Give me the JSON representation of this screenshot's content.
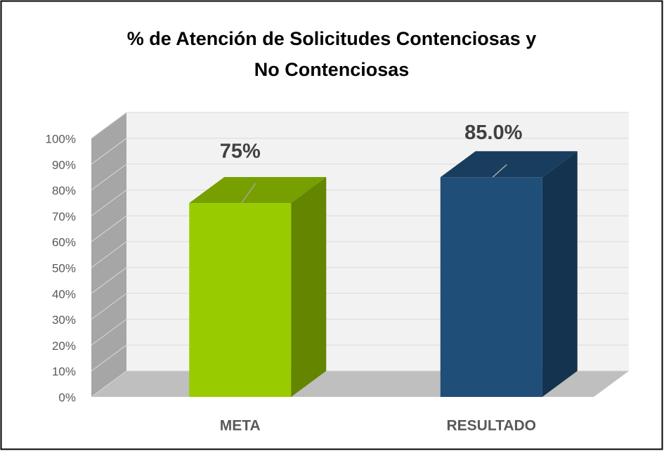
{
  "chart_data": {
    "type": "bar3d",
    "title": [
      "% de Atención de Solicitudes Contenciosas y",
      "No Contenciosas"
    ],
    "categories": [
      "META",
      "RESULTADO"
    ],
    "values": [
      75,
      85
    ],
    "value_labels": [
      "75%",
      "85.0%"
    ],
    "colors": [
      "#99cc00",
      "#1f4e79"
    ],
    "ylim": [
      0,
      100
    ],
    "yticks": [
      {
        "value": 0,
        "label": "0%"
      },
      {
        "value": 10,
        "label": "10%"
      },
      {
        "value": 20,
        "label": "20%"
      },
      {
        "value": 30,
        "label": "30%"
      },
      {
        "value": 40,
        "label": "40%"
      },
      {
        "value": 50,
        "label": "50%"
      },
      {
        "value": 60,
        "label": "60%"
      },
      {
        "value": 70,
        "label": "70%"
      },
      {
        "value": 80,
        "label": "80%"
      },
      {
        "value": 90,
        "label": "90%"
      },
      {
        "value": 100,
        "label": "100%"
      }
    ],
    "grid": true
  }
}
